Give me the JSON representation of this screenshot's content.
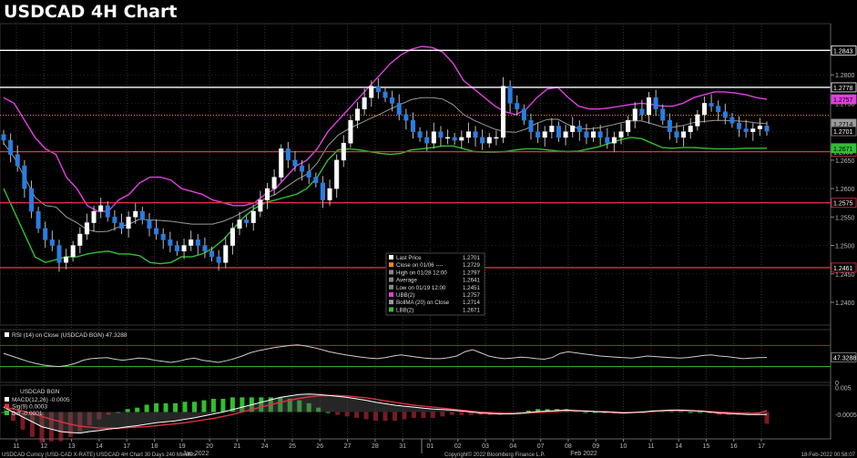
{
  "title": "USDCAD 4H Chart",
  "chart_data": {
    "type": "candlestick",
    "title": "USDCAD 4H Chart",
    "instrument": "USDCAD Curncy (USD-CAD X-RATE) USDCAD 4H Chart 30 Days 240 Minutes",
    "ylim": [
      1.236,
      1.289
    ],
    "y_ticks": [
      1.24,
      1.245,
      1.25,
      1.255,
      1.26,
      1.265,
      1.27,
      1.275,
      1.28
    ],
    "y_tick_labels": [
      "1.2400",
      "1.2450",
      "1.2500",
      "1.2550",
      "1.2600",
      "1.2650",
      "1.2700",
      "1.2750",
      "1.2800"
    ],
    "x_day_labels": [
      "11",
      "12",
      "13",
      "14",
      "17",
      "18",
      "19",
      "20",
      "21",
      "24",
      "25",
      "26",
      "27",
      "28",
      "31",
      "01",
      "02",
      "03",
      "04",
      "07",
      "08",
      "09",
      "10",
      "11",
      "14",
      "15",
      "16",
      "17"
    ],
    "x_month_labels": [
      "Jan 2022",
      "Feb 2022"
    ],
    "horizontal_levels": [
      {
        "value": 1.2843,
        "label": "1.2843",
        "color": "#ffffff"
      },
      {
        "value": 1.2778,
        "label": "1.2778",
        "color": "#ffffff"
      },
      {
        "value": 1.2665,
        "label": "1.2665",
        "color": "#e03040"
      },
      {
        "value": 1.2575,
        "label": "1.2575",
        "color": "#e03040"
      },
      {
        "value": 1.2461,
        "label": "1.2461",
        "color": "#e03040"
      }
    ],
    "average_line": 1.2729,
    "right_labels": [
      {
        "value": 1.2757,
        "label": "1.2757",
        "bg": "#e040e0",
        "fg": "#000000"
      },
      {
        "value": 1.2714,
        "label": "1.2714",
        "bg": "#9a9a9a",
        "fg": "#000000"
      },
      {
        "value": 1.2701,
        "label": "1.2701",
        "bg": "#000000",
        "fg": "#ffffff"
      },
      {
        "value": 1.2671,
        "label": "1.2671",
        "bg": "#30c030",
        "fg": "#000000"
      }
    ],
    "close": [
      1.2685,
      1.266,
      1.264,
      1.26,
      1.256,
      1.253,
      1.251,
      1.25,
      1.247,
      1.248,
      1.25,
      1.252,
      1.254,
      1.256,
      1.257,
      1.255,
      1.254,
      1.253,
      1.255,
      1.256,
      1.2545,
      1.253,
      1.252,
      1.251,
      1.25,
      1.249,
      1.25,
      1.251,
      1.25,
      1.249,
      1.248,
      1.247,
      1.25,
      1.253,
      1.2545,
      1.254,
      1.256,
      1.258,
      1.26,
      1.262,
      1.267,
      1.265,
      1.264,
      1.263,
      1.262,
      1.261,
      1.258,
      1.26,
      1.265,
      1.268,
      1.272,
      1.274,
      1.276,
      1.278,
      1.277,
      1.276,
      1.275,
      1.273,
      1.272,
      1.27,
      1.269,
      1.268,
      1.27,
      1.269,
      1.269,
      1.2685,
      1.269,
      1.27,
      1.269,
      1.268,
      1.269,
      1.269,
      1.278,
      1.275,
      1.274,
      1.272,
      1.27,
      1.269,
      1.27,
      1.271,
      1.269,
      1.27,
      1.271,
      1.27,
      1.269,
      1.27,
      1.269,
      1.268,
      1.269,
      1.27,
      1.272,
      1.274,
      1.273,
      1.276,
      1.274,
      1.272,
      1.27,
      1.269,
      1.27,
      1.271,
      1.273,
      1.275,
      1.2745,
      1.2735,
      1.2725,
      1.2715,
      1.2705,
      1.27,
      1.2705,
      1.271,
      1.2701
    ],
    "upper_band": [
      1.276,
      1.275,
      1.272,
      1.269,
      1.267,
      1.266,
      1.262,
      1.26,
      1.257,
      1.256,
      1.256,
      1.258,
      1.259,
      1.261,
      1.262,
      1.262,
      1.2615,
      1.26,
      1.2595,
      1.259,
      1.258,
      1.2575,
      1.257,
      1.257,
      1.2575,
      1.259,
      1.26,
      1.262,
      1.264,
      1.265,
      1.267,
      1.27,
      1.272,
      1.274,
      1.276,
      1.278,
      1.28,
      1.282,
      1.2835,
      1.2845,
      1.285,
      1.2848,
      1.284,
      1.282,
      1.279,
      1.2775,
      1.276,
      1.2745,
      1.2735,
      1.273,
      1.274,
      1.276,
      1.2775,
      1.2778,
      1.276,
      1.2745,
      1.274,
      1.274,
      1.2742,
      1.2745,
      1.2748,
      1.275,
      1.2748,
      1.2745,
      1.2745,
      1.275,
      1.276,
      1.2765,
      1.277,
      1.277,
      1.2768,
      1.2765,
      1.276,
      1.2757
    ],
    "lower_band": [
      1.26,
      1.256,
      1.252,
      1.248,
      1.247,
      1.2475,
      1.248,
      1.248,
      1.2485,
      1.2488,
      1.249,
      1.2485,
      1.2485,
      1.2482,
      1.247,
      1.2468,
      1.247,
      1.248,
      1.248,
      1.2485,
      1.2495,
      1.251,
      1.253,
      1.255,
      1.2565,
      1.2575,
      1.258,
      1.2585,
      1.259,
      1.26,
      1.262,
      1.265,
      1.2668,
      1.267,
      1.2668,
      1.2665,
      1.2662,
      1.266,
      1.2662,
      1.2668,
      1.267,
      1.2672,
      1.2675,
      1.2675,
      1.267,
      1.2665,
      1.2664,
      1.2664,
      1.2665,
      1.2668,
      1.267,
      1.267,
      1.2668,
      1.2666,
      1.2665,
      1.2666,
      1.267,
      1.2674,
      1.268,
      1.2686,
      1.269,
      1.2688,
      1.268,
      1.2672,
      1.2671,
      1.2672,
      1.2672,
      1.2671,
      1.267,
      1.267,
      1.267,
      1.2671,
      1.2671,
      1.2671
    ],
    "legend": [
      {
        "color": "#ffffff",
        "label": "Last Price",
        "value": "1.2701"
      },
      {
        "color": "#ff8c00",
        "label": "Close on 01/06 ----",
        "value": "1.2729"
      },
      {
        "color": "#888888",
        "label": "High on 01/28 12:00",
        "value": "1.2797"
      },
      {
        "color": "#888888",
        "label": "Average",
        "value": "1.2641"
      },
      {
        "color": "#888888",
        "label": "Low on 01/19 12:00",
        "value": "1.2451"
      },
      {
        "color": "#e040e0",
        "label": "UBB(2)",
        "value": "1.2757"
      },
      {
        "color": "#9a9a9a",
        "label": "BollMA (20)  on Close",
        "value": "1.2714"
      },
      {
        "color": "#30c030",
        "label": "LBB(2)",
        "value": "1.2671"
      }
    ],
    "rsi": {
      "label": "RSI (14)  on Close (USDCAD BGN) 47.3288",
      "ylim": [
        0,
        100
      ],
      "ticks": [
        0,
        50
      ],
      "tick_labels": [
        "0",
        "50"
      ],
      "last": "47.3288",
      "overbought": 70,
      "oversold": 30,
      "values": [
        55,
        50,
        45,
        40,
        36,
        33,
        31,
        30,
        32,
        36,
        42,
        45,
        46,
        47,
        44,
        42,
        44,
        46,
        45,
        42,
        40,
        38,
        40,
        44,
        46,
        42,
        40,
        38,
        41,
        45,
        50,
        56,
        60,
        63,
        66,
        68,
        70,
        71,
        69,
        66,
        62,
        58,
        55,
        52,
        50,
        48,
        46,
        45,
        47,
        50,
        52,
        50,
        48,
        46,
        45,
        45,
        47,
        50,
        58,
        62,
        56,
        50,
        47,
        45,
        46,
        48,
        47,
        45,
        44,
        47,
        55,
        58,
        56,
        54,
        52,
        50,
        49,
        48,
        47,
        46,
        48,
        50,
        49,
        48,
        47,
        46,
        47,
        49,
        51,
        52,
        50,
        49,
        47,
        45,
        46,
        47,
        47.3
      ]
    },
    "macd": {
      "header": "USDCAD BGN",
      "ylim": [
        -0.0055,
        0.0055
      ],
      "ticks": [
        0.005,
        -0.0005
      ],
      "tick_labels": [
        "0.005",
        "-0.0005"
      ],
      "series_labels": [
        {
          "label": "MACD(12,26)",
          "value": "-0.0005",
          "color": "#ffffff"
        },
        {
          "label": "Sig(9)",
          "value": "0.0003",
          "color": "#e03040"
        },
        {
          "label": "Diff",
          "value": "-0.0001",
          "color": "#30c030"
        }
      ],
      "macd_values": [
        0.001,
        0.0,
        -0.001,
        -0.002,
        -0.003,
        -0.0035,
        -0.004,
        -0.0042,
        -0.0043,
        -0.004,
        -0.0038,
        -0.0035,
        -0.0033,
        -0.003,
        -0.0028,
        -0.0025,
        -0.0022,
        -0.002,
        -0.0018,
        -0.0015,
        -0.0012,
        -0.0008,
        -0.0004,
        0.0,
        0.0005,
        0.001,
        0.0015,
        0.002,
        0.0025,
        0.003,
        0.0033,
        0.0036,
        0.0037,
        0.0036,
        0.0034,
        0.0032,
        0.003,
        0.0027,
        0.0024,
        0.002,
        0.0017,
        0.0014,
        0.0012,
        0.001,
        0.0008,
        0.0006,
        0.0005,
        0.0004,
        0.0002,
        0.0,
        -0.0002,
        -0.0003,
        -0.0004,
        -0.0004,
        -0.0003,
        -0.0001,
        0.0001,
        0.0002,
        0.0003,
        0.0004,
        0.0003,
        0.0002,
        0.0001,
        0.0,
        -0.0001,
        -0.0002,
        -0.0001,
        0.0,
        0.0002,
        0.0003,
        0.0004,
        0.0004,
        0.0003,
        0.0002,
        0.0,
        -0.0002,
        -0.0003,
        -0.0004,
        -0.0005,
        -0.0005,
        -0.0005
      ],
      "signal_values": [
        0.001,
        0.0006,
        0.0002,
        -0.0003,
        -0.0009,
        -0.0015,
        -0.002,
        -0.0025,
        -0.0029,
        -0.0031,
        -0.0033,
        -0.0033,
        -0.0033,
        -0.0032,
        -0.0031,
        -0.003,
        -0.0028,
        -0.0026,
        -0.0024,
        -0.0022,
        -0.0019,
        -0.0016,
        -0.0013,
        -0.0009,
        -0.0005,
        0.0,
        0.0005,
        0.001,
        0.0015,
        0.002,
        0.0024,
        0.0028,
        0.0031,
        0.0033,
        0.0034,
        0.0034,
        0.0033,
        0.0031,
        0.0029,
        0.0026,
        0.0023,
        0.002,
        0.0017,
        0.0014,
        0.0012,
        0.001,
        0.0008,
        0.0006,
        0.0004,
        0.0002,
        0.0,
        -0.0001,
        -0.0002,
        -0.0003,
        -0.0003,
        -0.0002,
        -0.0001,
        0.0,
        0.0001,
        0.0002,
        0.0002,
        0.0002,
        0.0001,
        0.0001,
        0.0,
        -0.0001,
        -0.0001,
        0.0,
        0.0001,
        0.0002,
        0.0003,
        0.0003,
        0.0003,
        0.0002,
        0.0001,
        0.0,
        -0.0001,
        -0.0002,
        -0.0003,
        -0.0003,
        0.0003
      ]
    },
    "footer_left": "USDCAD Curncy (USD-CAD X-RATE) USDCAD 4H Chart 30 Days 240 Minutes",
    "footer_center": "Copyright© 2022 Bloomberg Finance L.P.",
    "footer_right": "18-Feb-2022 00:58:07"
  }
}
